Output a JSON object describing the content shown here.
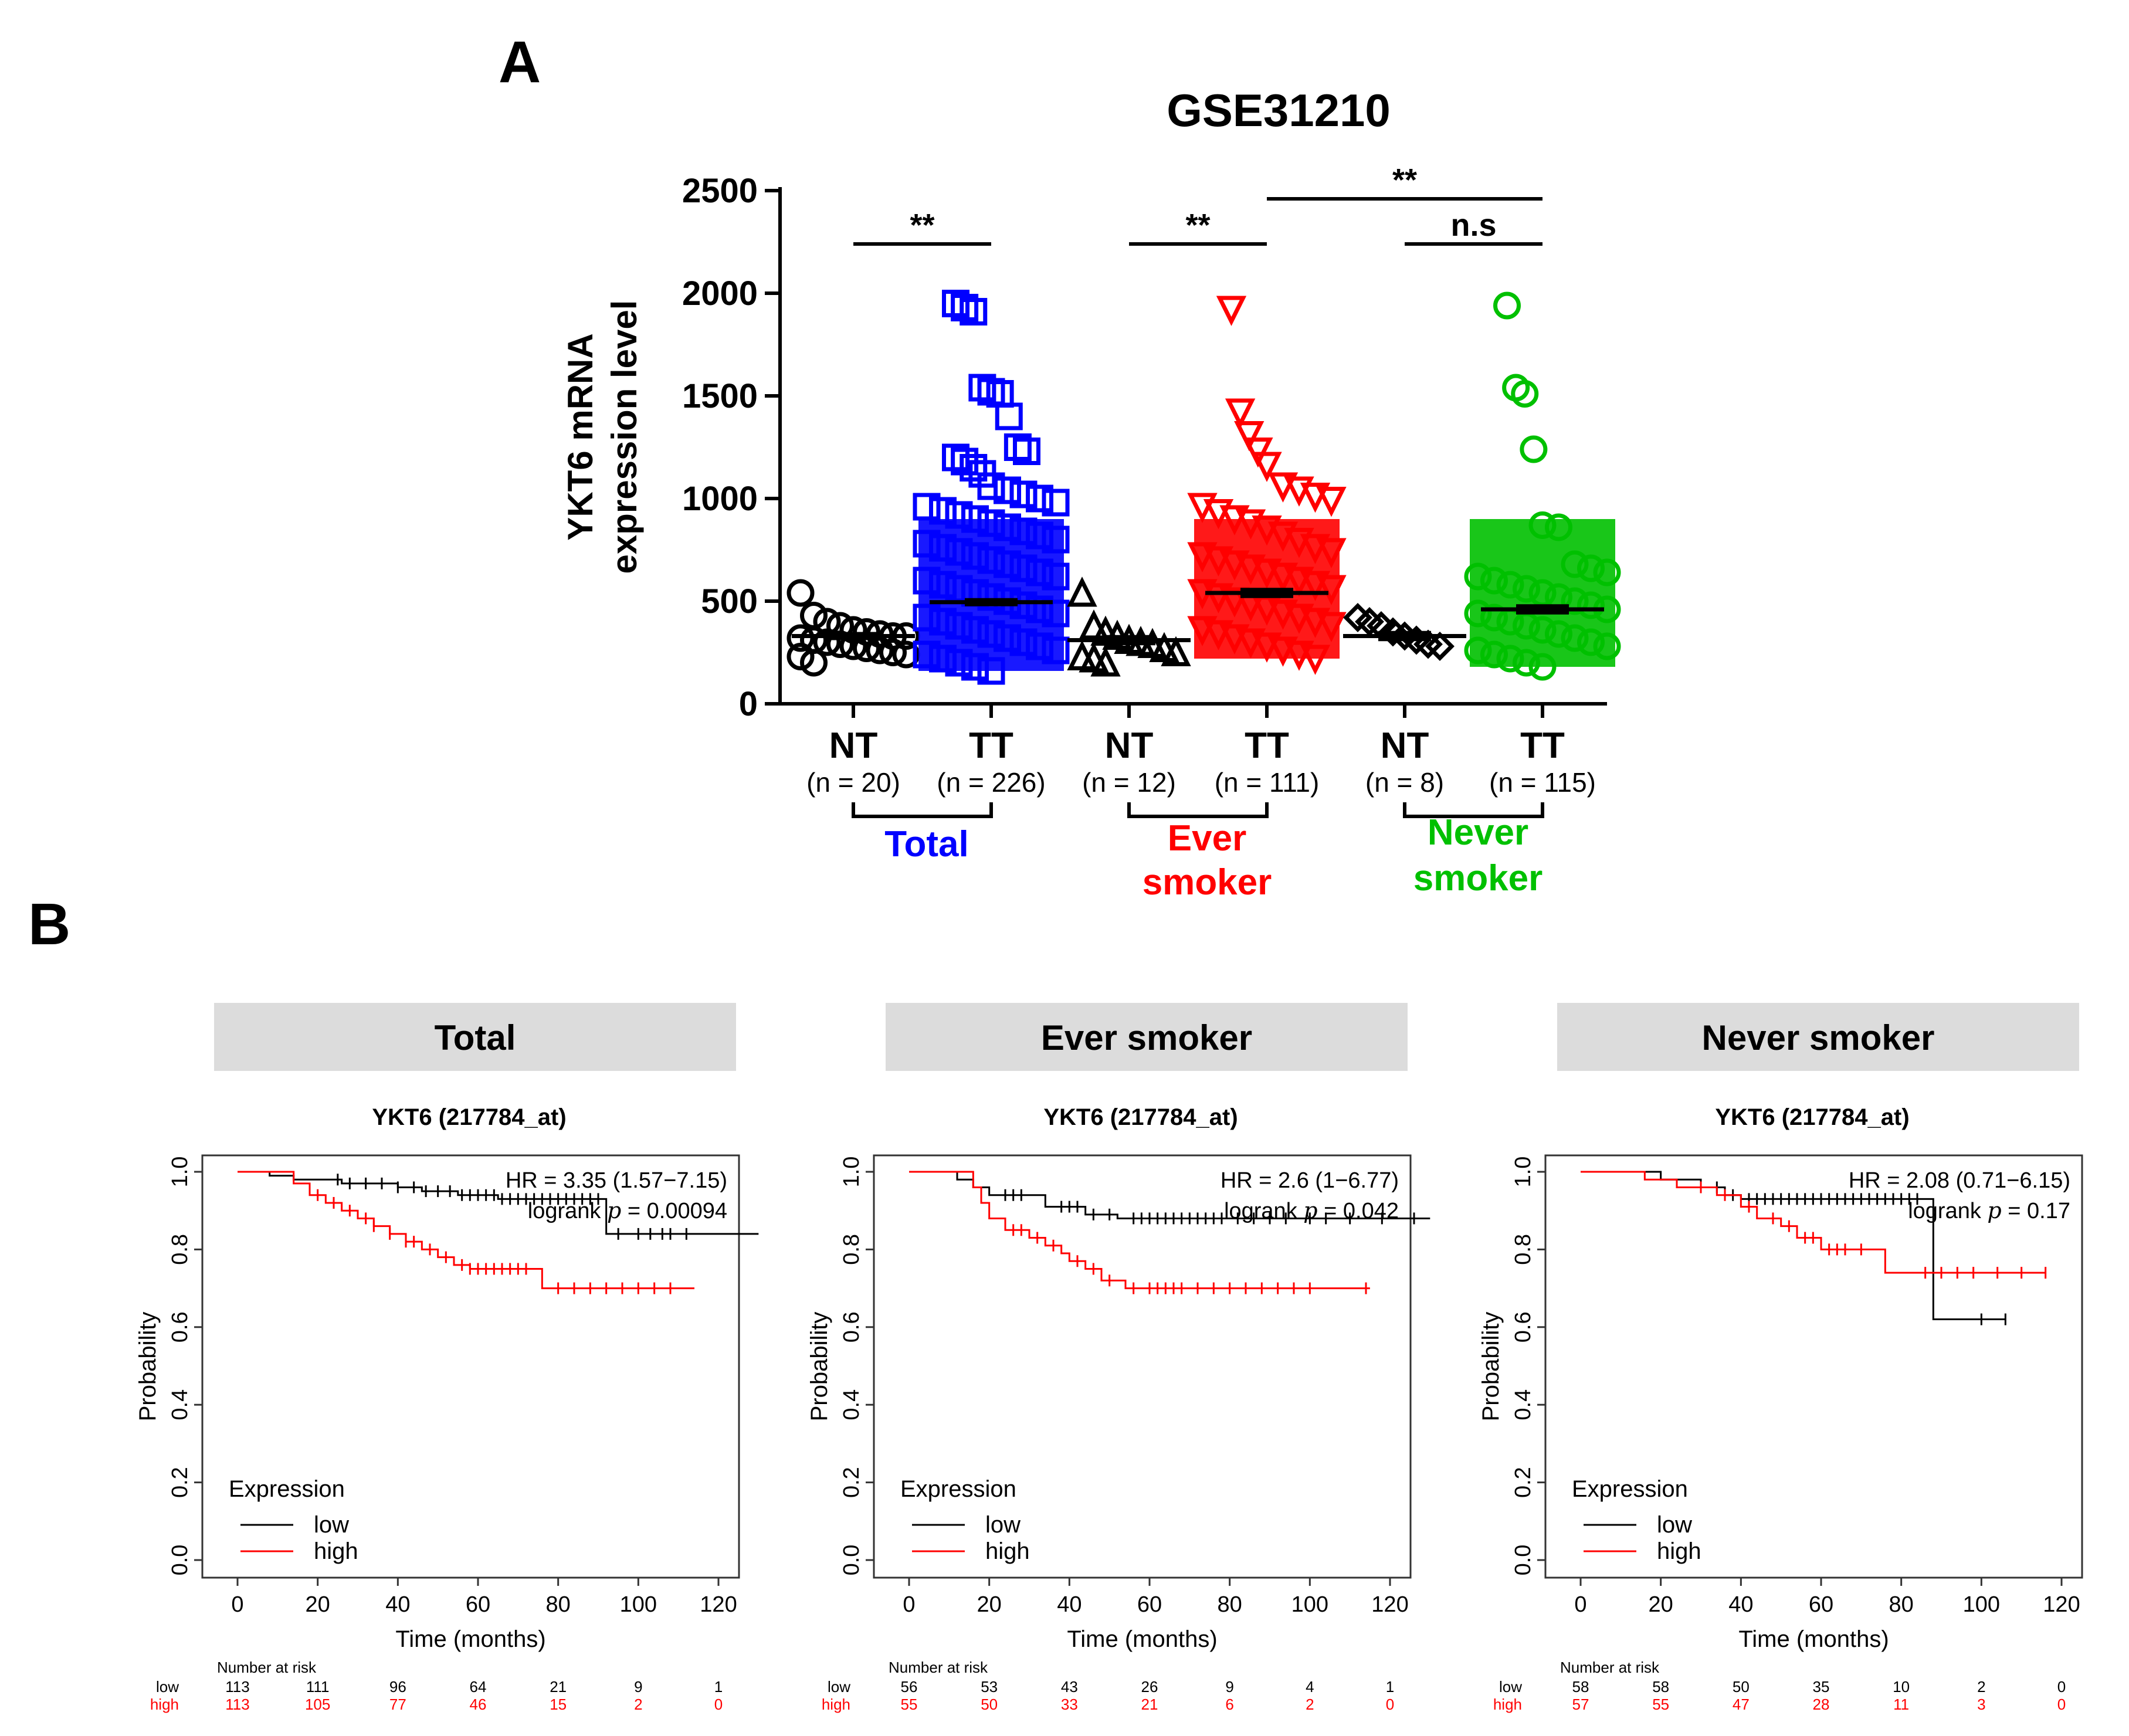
{
  "panel_a_letter": "A",
  "panel_b_letter": "B",
  "colors": {
    "total": "#0000ff",
    "ever": "#ff0000",
    "never": "#00c000",
    "nt": "#000000",
    "low": "#000000",
    "high": "#ff0000",
    "header_bg": "#dcdcdc"
  },
  "chart_data": [
    {
      "type": "scatter",
      "title": "GSE31210",
      "ylabel": "YKT6 mRNA expression level",
      "ylim": [
        0,
        2500
      ],
      "yticks": [
        "0",
        "500",
        "1000",
        "1500",
        "2000",
        "2500"
      ],
      "groups": [
        {
          "name": "Total",
          "color": "#0000ff",
          "categories": [
            {
              "label": "NT",
              "n": "(n = 20)",
              "marker": "circle",
              "color": "#000000",
              "mean": 330,
              "sem_err": 20,
              "points": [
                540,
                430,
                400,
                380,
                360,
                350,
                340,
                330,
                330,
                320,
                310,
                300,
                290,
                280,
                270,
                260,
                250,
                240,
                230,
                200
              ]
            },
            {
              "label": "TT",
              "n": "(n = 226)",
              "marker": "square",
              "color": "#0000ff",
              "mean": 495,
              "sem_err": 20,
              "points": [
                1950,
                1930,
                1910,
                1540,
                1520,
                1510,
                1400,
                1250,
                1230,
                1200,
                1180,
                1150,
                1120,
                1060,
                1040,
                1020,
                1000,
                980,
                960,
                940,
                920,
                900,
                880,
                860,
                840,
                820,
                800,
                780,
                760,
                740,
                720,
                700,
                680,
                660,
                640,
                620,
                600,
                580,
                560,
                540,
                520,
                500,
                480,
                460,
                440,
                420,
                400,
                380,
                360,
                340,
                320,
                300,
                280,
                260,
                240,
                220,
                200,
                180,
                160
              ]
            }
          ]
        },
        {
          "name": "Ever smoker",
          "color": "#ff0000",
          "categories": [
            {
              "label": "NT",
              "n": "(n = 12)",
              "marker": "triangle",
              "color": "#000000",
              "mean": 310,
              "sem_err": 25,
              "points": [
                540,
                380,
                350,
                330,
                310,
                300,
                290,
                270,
                250,
                230,
                220,
                200
              ]
            },
            {
              "label": "TT",
              "n": "(n = 111)",
              "marker": "triangle-down",
              "color": "#ff0000",
              "mean": 540,
              "sem_err": 25,
              "points": [
                1920,
                1420,
                1310,
                1230,
                1160,
                1060,
                1040,
                1010,
                990,
                960,
                930,
                900,
                880,
                850,
                820,
                790,
                760,
                740,
                720,
                700,
                680,
                660,
                640,
                620,
                600,
                580,
                560,
                540,
                520,
                500,
                480,
                460,
                440,
                420,
                400,
                380,
                360,
                340,
                320,
                300,
                280,
                260,
                240,
                220
              ]
            }
          ]
        },
        {
          "name": "Never smoker",
          "color": "#00c000",
          "categories": [
            {
              "label": "NT",
              "n": "(n = 8)",
              "marker": "diamond",
              "color": "#000000",
              "mean": 330,
              "sem_err": 25,
              "points": [
                420,
                400,
                380,
                350,
                330,
                310,
                290,
                280
              ]
            },
            {
              "label": "TT",
              "n": "(n = 115)",
              "marker": "circle",
              "color": "#00c000",
              "mean": 460,
              "sem_err": 25,
              "points": [
                1940,
                1540,
                1510,
                1240,
                870,
                860,
                680,
                660,
                640,
                620,
                600,
                580,
                560,
                540,
                520,
                500,
                480,
                460,
                440,
                420,
                400,
                380,
                360,
                340,
                320,
                300,
                280,
                260,
                240,
                220,
                200,
                180
              ]
            }
          ]
        }
      ],
      "total_label": "Total",
      "ever_label_line1": "Ever",
      "ever_label_line2": "smoker",
      "never_label_line1": "Never",
      "never_label_line2": "smoker",
      "comparisons": [
        {
          "label": "**",
          "from": 0,
          "to": 1,
          "y": 2240
        },
        {
          "label": "**",
          "from": 2,
          "to": 3,
          "y": 2240
        },
        {
          "label": "n.s",
          "from": 4,
          "to": 5,
          "y": 2240
        },
        {
          "label": "**",
          "from": 3,
          "to": 5,
          "y": 2460
        }
      ]
    },
    {
      "type": "line",
      "subtype": "kaplan-meier",
      "header": "Total",
      "title": "YKT6 (217784_at)",
      "xlabel": "Time (months)",
      "ylabel": "Probability",
      "xlim": [
        0,
        130
      ],
      "ylim": [
        0,
        1
      ],
      "xticks": [
        "0",
        "20",
        "40",
        "60",
        "80",
        "100",
        "120"
      ],
      "yticks": [
        "0.0",
        "0.2",
        "0.4",
        "0.6",
        "0.8",
        "1.0"
      ],
      "hr_text": "HR = 3.35 (1.57−7.15)",
      "logrank_word": "logrank",
      "p_symbol": "p",
      "p_value": "= 0.00094",
      "legend_title": "Expression",
      "legend_low": "low",
      "legend_high": "high",
      "series": [
        {
          "name": "low",
          "color": "#000000",
          "steps": [
            [
              0,
              1.0
            ],
            [
              8,
              0.99
            ],
            [
              14,
              0.98
            ],
            [
              26,
              0.97
            ],
            [
              40,
              0.96
            ],
            [
              46,
              0.95
            ],
            [
              55,
              0.94
            ],
            [
              65,
              0.93
            ],
            [
              92,
              0.84
            ],
            [
              130,
              0.84
            ]
          ],
          "censor": [
            25,
            28,
            32,
            36,
            40,
            44,
            47,
            50,
            53,
            56,
            58,
            60,
            62,
            64,
            66,
            68,
            70,
            72,
            74,
            76,
            78,
            80,
            82,
            84,
            86,
            88,
            90,
            95,
            100,
            103,
            106,
            108,
            112
          ]
        },
        {
          "name": "high",
          "color": "#ff0000",
          "steps": [
            [
              0,
              1.0
            ],
            [
              14,
              0.97
            ],
            [
              18,
              0.94
            ],
            [
              22,
              0.92
            ],
            [
              26,
              0.9
            ],
            [
              30,
              0.88
            ],
            [
              34,
              0.86
            ],
            [
              38,
              0.84
            ],
            [
              42,
              0.82
            ],
            [
              46,
              0.8
            ],
            [
              50,
              0.78
            ],
            [
              54,
              0.76
            ],
            [
              58,
              0.75
            ],
            [
              76,
              0.7
            ],
            [
              114,
              0.7
            ]
          ],
          "censor": [
            20,
            24,
            28,
            32,
            34,
            38,
            42,
            44,
            48,
            52,
            56,
            58,
            60,
            62,
            64,
            66,
            68,
            70,
            72,
            80,
            84,
            88,
            92,
            96,
            100,
            104,
            108
          ]
        }
      ],
      "risk_title": "Number at risk",
      "risk_low_label": "low",
      "risk_high_label": "high",
      "risk_low": [
        "113",
        "111",
        "96",
        "64",
        "21",
        "9",
        "1"
      ],
      "risk_high": [
        "113",
        "105",
        "77",
        "46",
        "15",
        "2",
        "0"
      ]
    },
    {
      "type": "line",
      "subtype": "kaplan-meier",
      "header": "Ever smoker",
      "title": "YKT6 (217784_at)",
      "xlabel": "Time (months)",
      "ylabel": "Probability",
      "xlim": [
        0,
        130
      ],
      "ylim": [
        0,
        1
      ],
      "xticks": [
        "0",
        "20",
        "40",
        "60",
        "80",
        "100",
        "120"
      ],
      "yticks": [
        "0.0",
        "0.2",
        "0.4",
        "0.6",
        "0.8",
        "1.0"
      ],
      "hr_text": "HR = 2.6 (1−6.77)",
      "logrank_word": "logrank",
      "p_symbol": "p",
      "p_value": "= 0.042",
      "legend_title": "Expression",
      "legend_low": "low",
      "legend_high": "high",
      "series": [
        {
          "name": "low",
          "color": "#000000",
          "steps": [
            [
              0,
              1.0
            ],
            [
              12,
              0.98
            ],
            [
              16,
              0.96
            ],
            [
              20,
              0.94
            ],
            [
              34,
              0.91
            ],
            [
              44,
              0.89
            ],
            [
              52,
              0.88
            ],
            [
              130,
              0.88
            ]
          ],
          "censor": [
            24,
            26,
            28,
            38,
            40,
            42,
            46,
            50,
            56,
            58,
            60,
            62,
            64,
            66,
            68,
            70,
            72,
            74,
            76,
            78,
            82,
            86,
            90,
            94,
            100,
            104,
            110,
            118,
            126
          ]
        },
        {
          "name": "high",
          "color": "#ff0000",
          "steps": [
            [
              0,
              1.0
            ],
            [
              16,
              0.96
            ],
            [
              18,
              0.92
            ],
            [
              20,
              0.88
            ],
            [
              24,
              0.85
            ],
            [
              30,
              0.83
            ],
            [
              34,
              0.81
            ],
            [
              38,
              0.79
            ],
            [
              40,
              0.77
            ],
            [
              44,
              0.75
            ],
            [
              48,
              0.72
            ],
            [
              54,
              0.7
            ],
            [
              115,
              0.7
            ]
          ],
          "censor": [
            26,
            28,
            32,
            36,
            42,
            46,
            50,
            56,
            60,
            62,
            64,
            66,
            68,
            72,
            76,
            80,
            84,
            88,
            92,
            96,
            100,
            114
          ]
        }
      ],
      "risk_title": "Number at risk",
      "risk_low_label": "low",
      "risk_high_label": "high",
      "risk_low": [
        "56",
        "53",
        "43",
        "26",
        "9",
        "4",
        "1"
      ],
      "risk_high": [
        "55",
        "50",
        "33",
        "21",
        "6",
        "2",
        "0"
      ]
    },
    {
      "type": "line",
      "subtype": "kaplan-meier",
      "header": "Never smoker",
      "title": "YKT6 (217784_at)",
      "xlabel": "Time (months)",
      "ylabel": "Probability",
      "xlim": [
        0,
        120
      ],
      "ylim": [
        0,
        1
      ],
      "xticks": [
        "0",
        "20",
        "40",
        "60",
        "80",
        "100",
        "120"
      ],
      "yticks": [
        "0.0",
        "0.2",
        "0.4",
        "0.6",
        "0.8",
        "1.0"
      ],
      "hr_text": "HR = 2.08 (0.71−6.15)",
      "logrank_word": "logrank",
      "p_symbol": "p",
      "p_value": "= 0.17",
      "legend_title": "Expression",
      "legend_low": "low",
      "legend_high": "high",
      "series": [
        {
          "name": "low",
          "color": "#000000",
          "steps": [
            [
              0,
              1.0
            ],
            [
              20,
              0.98
            ],
            [
              30,
              0.96
            ],
            [
              36,
              0.94
            ],
            [
              40,
              0.93
            ],
            [
              88,
              0.62
            ],
            [
              106,
              0.62
            ]
          ],
          "censor": [
            34,
            38,
            42,
            44,
            46,
            48,
            50,
            52,
            54,
            56,
            58,
            60,
            62,
            64,
            66,
            68,
            70,
            72,
            74,
            76,
            78,
            80,
            82,
            84,
            100,
            106
          ]
        },
        {
          "name": "high",
          "color": "#ff0000",
          "steps": [
            [
              0,
              1.0
            ],
            [
              16,
              0.98
            ],
            [
              24,
              0.96
            ],
            [
              34,
              0.94
            ],
            [
              40,
              0.91
            ],
            [
              44,
              0.88
            ],
            [
              50,
              0.86
            ],
            [
              54,
              0.83
            ],
            [
              60,
              0.8
            ],
            [
              76,
              0.74
            ],
            [
              116,
              0.74
            ]
          ],
          "censor": [
            30,
            36,
            42,
            48,
            52,
            56,
            58,
            62,
            64,
            66,
            70,
            86,
            90,
            94,
            98,
            104,
            110,
            116
          ]
        }
      ],
      "risk_title": "Number at risk",
      "risk_low_label": "low",
      "risk_high_label": "high",
      "risk_low": [
        "58",
        "58",
        "50",
        "35",
        "10",
        "2",
        "0"
      ],
      "risk_high": [
        "57",
        "55",
        "47",
        "28",
        "11",
        "3",
        "0"
      ]
    }
  ]
}
